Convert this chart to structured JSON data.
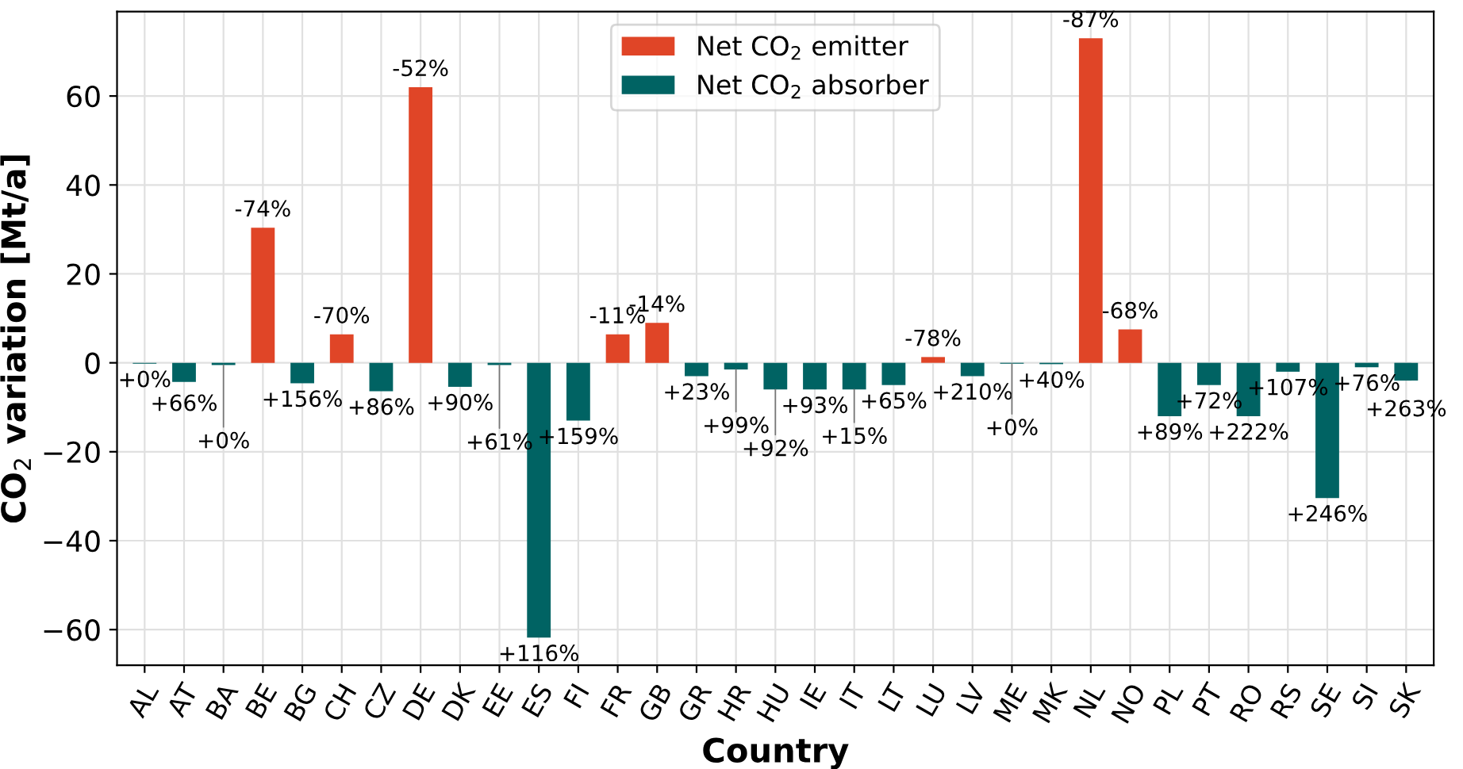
{
  "chart_data": {
    "type": "bar",
    "xlabel": "Country",
    "ylabel": "CO$_{2}$ variation [Mt/a]",
    "categories": [
      "AL",
      "AT",
      "BA",
      "BE",
      "BG",
      "CH",
      "CZ",
      "DE",
      "DK",
      "EE",
      "ES",
      "FI",
      "FR",
      "GB",
      "GR",
      "HR",
      "HU",
      "IE",
      "IT",
      "LT",
      "LU",
      "LV",
      "ME",
      "MK",
      "NL",
      "NO",
      "PL",
      "PT",
      "RO",
      "RS",
      "SE",
      "SI",
      "SK"
    ],
    "series": [
      {
        "name": "Net CO$_{2}$ emitter",
        "color": "#e04527",
        "values": [
          null,
          null,
          null,
          30.4,
          null,
          6.4,
          null,
          62,
          null,
          null,
          null,
          null,
          6.4,
          9,
          null,
          null,
          null,
          null,
          null,
          null,
          1.3,
          null,
          null,
          null,
          73,
          7.5,
          null,
          null,
          null,
          null,
          null,
          null,
          null
        ]
      },
      {
        "name": "Net CO$_{2}$ absorber",
        "color": "#006363",
        "values": [
          -0.2,
          -4.3,
          -0.5,
          null,
          -4.6,
          null,
          -6.4,
          null,
          -5.4,
          -0.5,
          -61.8,
          -13,
          null,
          null,
          -3,
          -1.5,
          -6,
          -6,
          -6,
          -5,
          null,
          -3,
          -0.2,
          -0.3,
          null,
          null,
          -12,
          -5,
          -12,
          -2,
          -30.4,
          -1,
          -4
        ]
      }
    ],
    "annotations": [
      {
        "text": "+0%",
        "x": "AL",
        "y": -0.2
      },
      {
        "text": "+66%",
        "x": "AT",
        "y": -4.3
      },
      {
        "text": "+0%",
        "x": "BA",
        "y": -0.5
      },
      {
        "text": "-74%",
        "x": "BE",
        "y": 30.4
      },
      {
        "text": "+156%",
        "x": "BG",
        "y": -4.6
      },
      {
        "text": "-70%",
        "x": "CH",
        "y": 6.4
      },
      {
        "text": "+86%",
        "x": "CZ",
        "y": -6.4
      },
      {
        "text": "-52%",
        "x": "DE",
        "y": 62
      },
      {
        "text": "+90%",
        "x": "DK",
        "y": -5.4
      },
      {
        "text": "+61%",
        "x": "EE",
        "y": -0.5
      },
      {
        "text": "+116%",
        "x": "ES",
        "y": -61.8
      },
      {
        "text": "+159%",
        "x": "FI",
        "y": -13
      },
      {
        "text": "-11%",
        "x": "FR",
        "y": 6.4
      },
      {
        "text": "-14%",
        "x": "GB",
        "y": 9
      },
      {
        "text": "+23%",
        "x": "GR",
        "y": -3
      },
      {
        "text": "+99%",
        "x": "HR",
        "y": -1.5
      },
      {
        "text": "+92%",
        "x": "HU",
        "y": -6
      },
      {
        "text": "+93%",
        "x": "IE",
        "y": -6
      },
      {
        "text": "+15%",
        "x": "IT",
        "y": -6
      },
      {
        "text": "+65%",
        "x": "LT",
        "y": -5
      },
      {
        "text": "-78%",
        "x": "LU",
        "y": 1.3
      },
      {
        "text": "+210%",
        "x": "LV",
        "y": -3
      },
      {
        "text": "+0%",
        "x": "ME",
        "y": -0.2
      },
      {
        "text": "+40%",
        "x": "MK",
        "y": -0.3
      },
      {
        "text": "-87%",
        "x": "NL",
        "y": 73
      },
      {
        "text": "-68%",
        "x": "NO",
        "y": 7.5
      },
      {
        "text": "+89%",
        "x": "PL",
        "y": -12
      },
      {
        "text": "+72%",
        "x": "PT",
        "y": -5
      },
      {
        "text": "+222%",
        "x": "RO",
        "y": -12
      },
      {
        "text": "+107%",
        "x": "RS",
        "y": -2
      },
      {
        "text": "+246%",
        "x": "SE",
        "y": -30.4
      },
      {
        "text": "+76%",
        "x": "SI",
        "y": -1
      },
      {
        "text": "+263%",
        "x": "SK",
        "y": -4
      }
    ],
    "ylim": [
      -68,
      79
    ],
    "yticks": [
      {
        "value": -60,
        "label": "−60"
      },
      {
        "value": -40,
        "label": "−40"
      },
      {
        "value": -20,
        "label": "−20"
      },
      0,
      20,
      40,
      60
    ],
    "grid": true,
    "legend": "top"
  }
}
